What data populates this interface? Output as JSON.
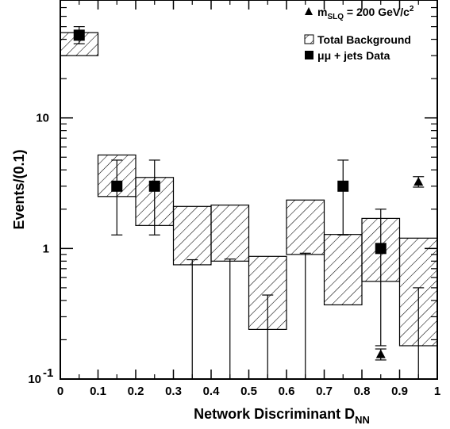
{
  "chart_data": {
    "type": "bar",
    "x_axis": {
      "label_main": "Network Discriminant D",
      "label_sub": "NN",
      "range": [
        0,
        1
      ],
      "ticks": [
        "0",
        "0.1",
        "0.2",
        "0.3",
        "0.4",
        "0.5",
        "0.6",
        "0.7",
        "0.8",
        "0.9",
        "1"
      ]
    },
    "y_axis": {
      "label": "Events/(0.1)",
      "scale": "log",
      "range": [
        0.1,
        80
      ],
      "ticks": [
        {
          "value": 0.1,
          "base": "10",
          "exp": "-1"
        },
        {
          "value": 1,
          "base": "1",
          "exp": ""
        },
        {
          "value": 10,
          "base": "10",
          "exp": ""
        }
      ]
    },
    "legend": {
      "position": "top-right",
      "signal": {
        "prefix": "m",
        "sub": "SLQ",
        "mid": " = 200 GeV/c",
        "sup": "2"
      },
      "background": "Total Background",
      "data": "μμ + jets Data"
    },
    "background": {
      "name": "Total Background",
      "bins": [
        {
          "x0": 0.0,
          "x1": 0.1,
          "low": 30,
          "high": 45
        },
        {
          "x0": 0.1,
          "x1": 0.2,
          "low": 2.5,
          "high": 5.2
        },
        {
          "x0": 0.2,
          "x1": 0.3,
          "low": 1.5,
          "high": 3.5
        },
        {
          "x0": 0.3,
          "x1": 0.4,
          "low": 0.75,
          "high": 2.1
        },
        {
          "x0": 0.4,
          "x1": 0.5,
          "low": 0.8,
          "high": 2.15
        },
        {
          "x0": 0.5,
          "x1": 0.6,
          "low": 0.24,
          "high": 0.87
        },
        {
          "x0": 0.6,
          "x1": 0.7,
          "low": 0.9,
          "high": 2.35
        },
        {
          "x0": 0.7,
          "x1": 0.8,
          "low": 0.37,
          "high": 1.28
        },
        {
          "x0": 0.8,
          "x1": 0.9,
          "low": 0.56,
          "high": 1.7
        },
        {
          "x0": 0.9,
          "x1": 1.0,
          "low": 0.18,
          "high": 1.2
        }
      ]
    },
    "data_points": {
      "name": "μμ + jets Data",
      "points": [
        {
          "x": 0.05,
          "y": 43,
          "err_low": 37,
          "err_high": 50,
          "marker": true
        },
        {
          "x": 0.15,
          "y": 3,
          "err_low": 1.27,
          "err_high": 4.75,
          "marker": true
        },
        {
          "x": 0.25,
          "y": 3,
          "err_low": 1.27,
          "err_high": 4.75,
          "marker": true
        },
        {
          "x": 0.35,
          "y": 0,
          "err_low": 0.05,
          "err_high": 0.82,
          "marker": false
        },
        {
          "x": 0.45,
          "y": 0,
          "err_low": 0.05,
          "err_high": 0.83,
          "marker": false
        },
        {
          "x": 0.55,
          "y": 0,
          "err_low": 0.05,
          "err_high": 0.44,
          "marker": false
        },
        {
          "x": 0.65,
          "y": 0,
          "err_low": 0.05,
          "err_high": 0.92,
          "marker": false
        },
        {
          "x": 0.75,
          "y": 3,
          "err_low": 1.27,
          "err_high": 4.75,
          "marker": true
        },
        {
          "x": 0.85,
          "y": 1,
          "err_low": 0.18,
          "err_high": 2.0,
          "marker": true
        },
        {
          "x": 0.95,
          "y": 0,
          "err_low": 0.05,
          "err_high": 0.5,
          "marker": false
        }
      ]
    },
    "signal": {
      "name": "m_SLQ = 200 GeV/c^2",
      "points": [
        {
          "x": 0.85,
          "y": 0.155,
          "err_low": 0.14,
          "err_high": 0.17
        },
        {
          "x": 0.95,
          "y": 3.25,
          "err_low": 2.95,
          "err_high": 3.55
        }
      ]
    },
    "grid": false
  }
}
